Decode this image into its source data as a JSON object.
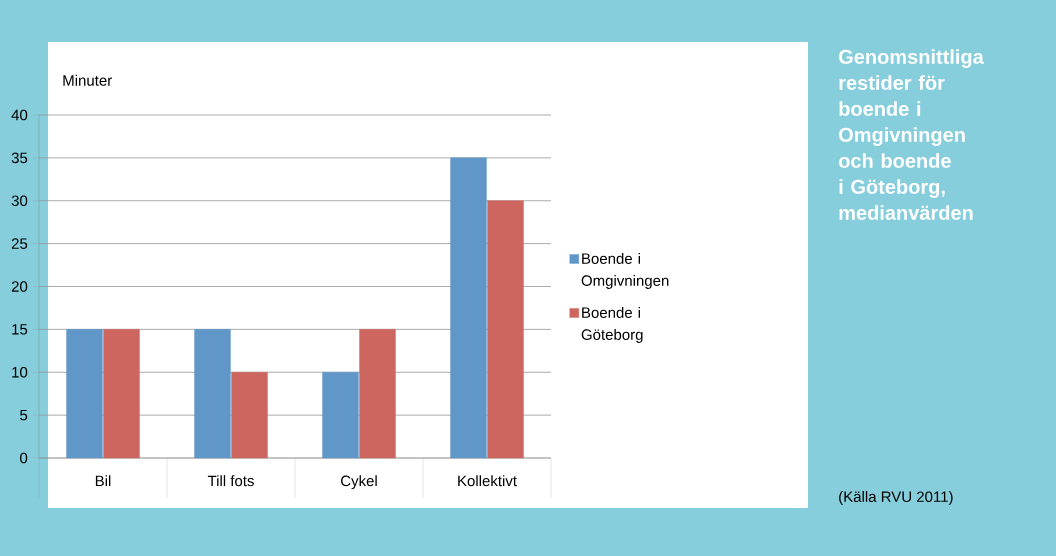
{
  "chart_data": {
    "type": "bar",
    "title": "Genomsnittliga restider för boende i Omgivningen och boende i Göteborg, medianvärden",
    "ylabel": "Minuter",
    "categories": [
      "Bil",
      "Till fots",
      "Cykel",
      "Kollektivt"
    ],
    "series": [
      {
        "name": "Boende i Omgivningen",
        "color": "#6096c8",
        "values": [
          15,
          15,
          10,
          35
        ]
      },
      {
        "name": "Boende i Göteborg",
        "color": "#cd665f",
        "values": [
          15,
          10,
          15,
          30
        ]
      }
    ],
    "ylim": [
      0,
      40
    ],
    "yticks": [
      0,
      5,
      10,
      15,
      20,
      25,
      30,
      35,
      40
    ],
    "grid": "y",
    "legend": "right",
    "annotations": [
      "(Källa RVU 2011)"
    ]
  }
}
